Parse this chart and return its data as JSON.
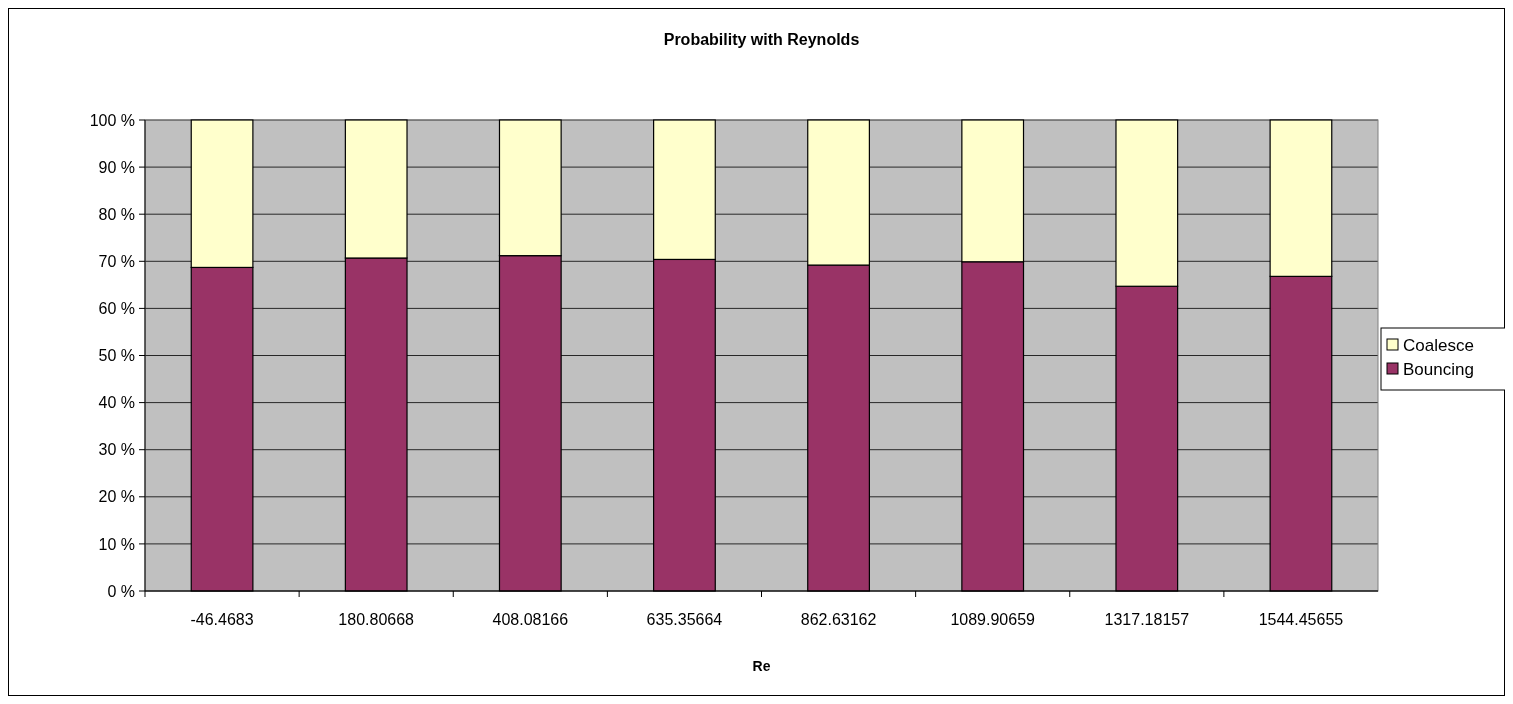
{
  "chart_data": {
    "type": "bar",
    "title": "Probability with Reynolds",
    "xlabel": "Re",
    "stacked": true,
    "categories": [
      "-46.4683",
      "180.80668",
      "408.08166",
      "635.35664",
      "862.63162",
      "1089.90659",
      "1317.18157",
      "1544.45655"
    ],
    "series": [
      {
        "name": "Bouncing",
        "color": "#993366",
        "values": [
          68.7,
          70.7,
          71.2,
          70.4,
          69.2,
          69.9,
          64.7,
          66.8
        ]
      },
      {
        "name": "Coalesce",
        "color": "#ffffcc",
        "values": [
          31.3,
          29.3,
          28.8,
          29.6,
          30.8,
          30.1,
          35.3,
          33.2
        ]
      }
    ],
    "ylim": [
      0,
      100
    ],
    "yticks": [
      {
        "value": 0,
        "label": "0 %"
      },
      {
        "value": 10,
        "label": "10 %"
      },
      {
        "value": 20,
        "label": "20 %"
      },
      {
        "value": 30,
        "label": "30 %"
      },
      {
        "value": 40,
        "label": "40 %"
      },
      {
        "value": 50,
        "label": "50 %"
      },
      {
        "value": 60,
        "label": "60 %"
      },
      {
        "value": 70,
        "label": "70 %"
      },
      {
        "value": 80,
        "label": "80 %"
      },
      {
        "value": 90,
        "label": "90 %"
      },
      {
        "value": 100,
        "label": "100 %"
      }
    ],
    "grid": "y",
    "legend": "right"
  }
}
